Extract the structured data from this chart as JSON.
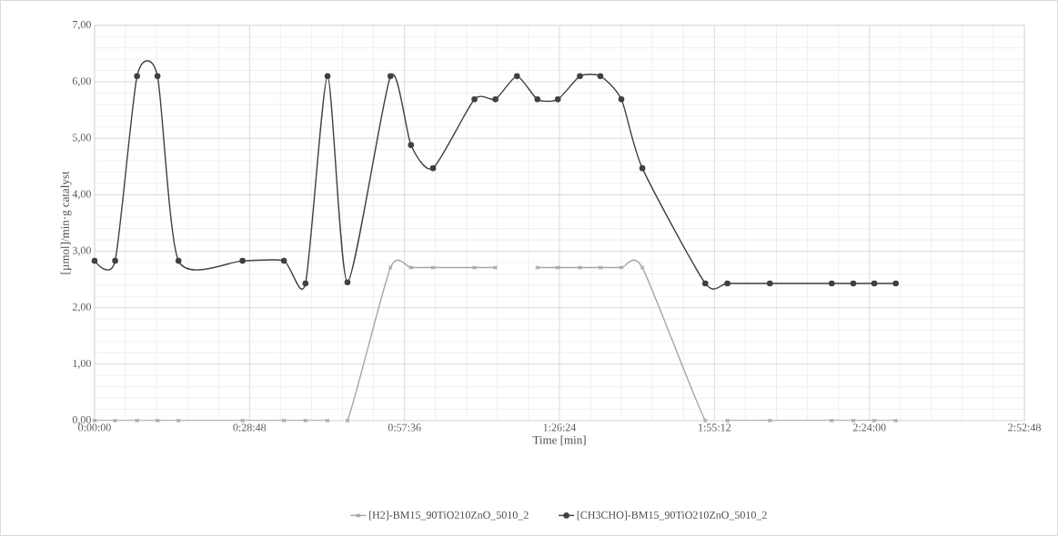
{
  "chart_data": {
    "type": "line",
    "xlabel": "Time [min]",
    "ylabel": "[µmol]/min·g catalyst",
    "x": [
      0,
      3.83,
      7.9,
      11.7,
      15.6,
      27.5,
      35.2,
      39.2,
      43.3,
      47.0,
      55.0,
      58.8,
      62.9,
      70.6,
      74.5,
      78.5,
      82.3,
      86.1,
      90.2,
      94.0,
      97.9,
      101.8,
      113.5,
      117.6,
      125.5,
      137.0,
      141.0,
      144.9,
      148.9
    ],
    "series": [
      {
        "name": "[H2]-BM15_90TiO210ZnO_5010_2",
        "color": "#a6a6a6",
        "marker": "cross",
        "values": [
          0,
          0,
          0,
          0,
          0,
          0,
          0,
          0,
          0,
          0,
          2.71,
          2.71,
          2.71,
          2.71,
          2.71,
          null,
          2.71,
          2.71,
          2.71,
          2.71,
          2.71,
          2.71,
          0,
          0,
          0,
          0,
          0,
          0,
          0
        ]
      },
      {
        "name": "[CH3CHO]-BM15_90TiO210ZnO_5010_2",
        "color": "#404040",
        "marker": "circle",
        "values": [
          2.83,
          2.83,
          6.1,
          6.1,
          2.83,
          2.83,
          2.83,
          2.43,
          6.1,
          2.45,
          6.1,
          4.88,
          4.47,
          5.69,
          5.69,
          6.1,
          5.69,
          5.69,
          6.1,
          6.1,
          5.69,
          4.47,
          2.43,
          2.43,
          2.43,
          2.43,
          2.43,
          2.43,
          2.43
        ]
      }
    ],
    "xlim": [
      0,
      172.8
    ],
    "ylim": [
      0,
      7
    ],
    "xticks": [
      {
        "value": 0,
        "label": "0:00:00"
      },
      {
        "value": 28.8,
        "label": "0:28:48"
      },
      {
        "value": 57.6,
        "label": "0:57:36"
      },
      {
        "value": 86.4,
        "label": "1:26:24"
      },
      {
        "value": 115.2,
        "label": "1:55:12"
      },
      {
        "value": 144,
        "label": "2:24:00"
      },
      {
        "value": 172.8,
        "label": "2:52:48"
      }
    ],
    "yticks": [
      {
        "value": 0,
        "label": "0,00"
      },
      {
        "value": 1,
        "label": "1,00"
      },
      {
        "value": 2,
        "label": "2,00"
      },
      {
        "value": 3,
        "label": "3,00"
      },
      {
        "value": 4,
        "label": "4,00"
      },
      {
        "value": 5,
        "label": "5,00"
      },
      {
        "value": 6,
        "label": "6,00"
      },
      {
        "value": 7,
        "label": "7,00"
      }
    ],
    "grid": true,
    "legend": "bottom",
    "line_style": "solid"
  }
}
